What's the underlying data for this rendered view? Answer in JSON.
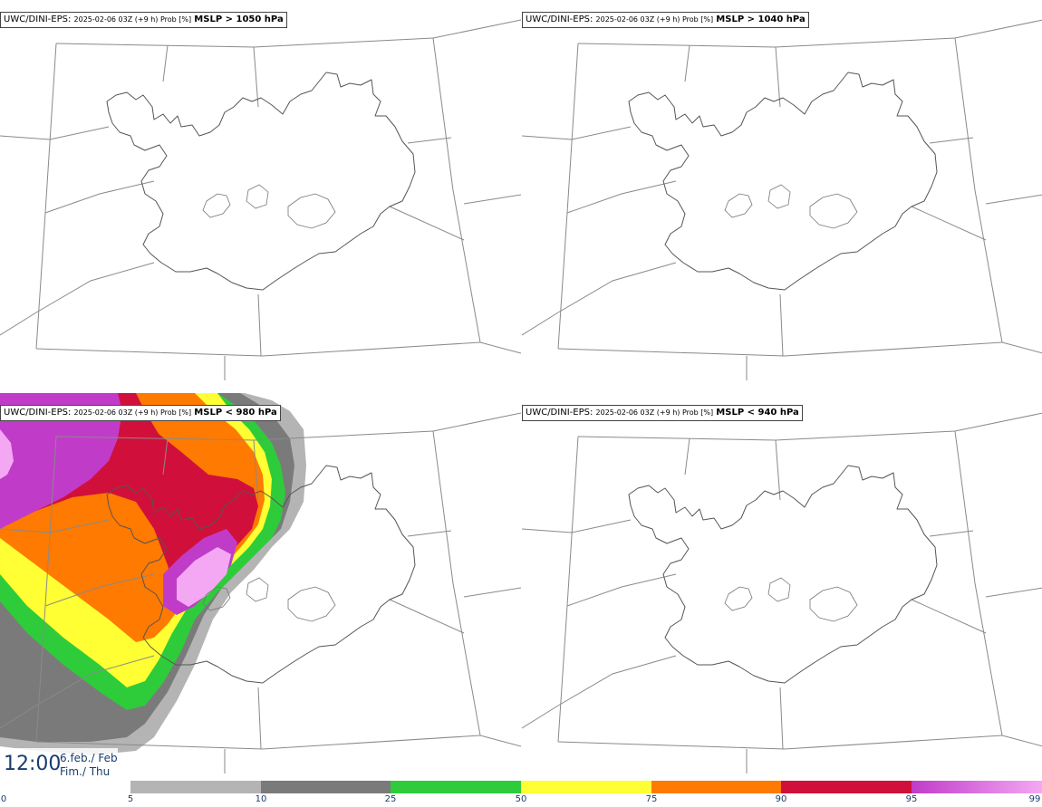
{
  "panels": [
    {
      "model": "UWC/DINI-EPS",
      "run": "2025-02-06 03Z (+9 h) Prob [%]",
      "threshold": "MSLP > 1050 hPa"
    },
    {
      "model": "UWC/DINI-EPS",
      "run": "2025-02-06 03Z (+9 h) Prob [%]",
      "threshold": "MSLP > 1040 hPa"
    },
    {
      "model": "UWC/DINI-EPS",
      "run": "2025-02-06 03Z (+9 h) Prob [%]",
      "threshold": "MSLP < 980 hPa"
    },
    {
      "model": "UWC/DINI-EPS",
      "run": "2025-02-06 03Z (+9 h) Prob [%]",
      "threshold": "MSLP < 940 hPa"
    }
  ],
  "valid_time": {
    "time": "12:00",
    "date_line1": "6.feb./ Feb",
    "date_line2": "Fim./ Thu"
  },
  "colorbar": {
    "ticks": [
      "0",
      "5",
      "10",
      "25",
      "50",
      "75",
      "90",
      "95",
      "99"
    ],
    "colors": [
      "#ffffff",
      "#b4b4b4",
      "#7a7a7a",
      "#2ecc3a",
      "#ffff33",
      "#ff7a00",
      "#d0103a",
      "#c03cc8",
      "#f4a8f4"
    ]
  }
}
